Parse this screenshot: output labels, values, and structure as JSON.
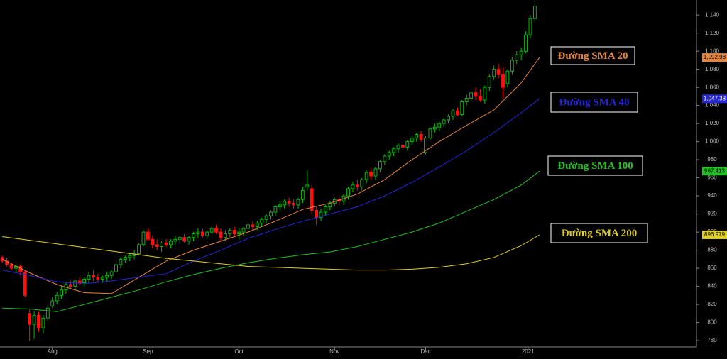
{
  "chart_data": {
    "type": "candlestick",
    "up_color": "#00c000",
    "down_color": "#ff1010",
    "open": [
      872,
      868,
      864,
      860,
      862,
      856,
      810,
      798,
      808,
      794,
      805,
      818,
      824,
      830,
      836,
      842,
      840,
      846,
      844,
      848,
      852,
      850,
      848,
      850,
      852,
      856,
      864,
      870,
      872,
      874,
      876,
      886,
      900,
      892,
      886,
      884,
      888,
      886,
      890,
      892,
      894,
      890,
      894,
      898,
      900,
      896,
      900,
      904,
      900,
      894,
      898,
      902,
      898,
      900,
      904,
      908,
      906,
      910,
      914,
      918,
      922,
      928,
      930,
      934,
      932,
      930,
      936,
      950,
      948,
      924,
      916,
      922,
      928,
      932,
      936,
      934,
      940,
      948,
      952,
      950,
      958,
      966,
      962,
      970,
      978,
      984,
      988,
      992,
      996,
      994,
      1000,
      1004,
      1008,
      988,
      1004,
      1014,
      1016,
      1020,
      1024,
      1028,
      1034,
      1030,
      1044,
      1048,
      1054,
      1050,
      1046,
      1060,
      1072,
      1080,
      1074,
      1064,
      1078,
      1090,
      1096,
      1100,
      1118,
      1136
    ],
    "high": [
      874,
      872,
      866,
      864,
      864,
      858,
      815,
      812,
      812,
      808,
      820,
      828,
      834,
      840,
      844,
      846,
      848,
      850,
      850,
      856,
      858,
      854,
      852,
      856,
      858,
      866,
      872,
      874,
      876,
      880,
      888,
      902,
      904,
      896,
      892,
      890,
      892,
      892,
      896,
      896,
      898,
      896,
      900,
      904,
      904,
      902,
      906,
      908,
      904,
      902,
      904,
      906,
      904,
      906,
      910,
      912,
      912,
      916,
      920,
      924,
      930,
      934,
      936,
      938,
      936,
      938,
      950,
      968,
      952,
      928,
      926,
      930,
      934,
      938,
      940,
      942,
      950,
      956,
      958,
      960,
      968,
      970,
      972,
      980,
      986,
      990,
      994,
      998,
      1000,
      1002,
      1006,
      1010,
      1012,
      1006,
      1016,
      1020,
      1022,
      1026,
      1030,
      1036,
      1038,
      1046,
      1052,
      1056,
      1060,
      1058,
      1062,
      1074,
      1084,
      1086,
      1082,
      1080,
      1094,
      1100,
      1104,
      1122,
      1140,
      1156
    ],
    "low": [
      866,
      862,
      858,
      856,
      852,
      828,
      780,
      782,
      790,
      788,
      802,
      816,
      820,
      826,
      832,
      838,
      836,
      842,
      840,
      844,
      846,
      844,
      844,
      846,
      848,
      854,
      860,
      866,
      868,
      870,
      874,
      884,
      890,
      882,
      880,
      878,
      884,
      882,
      886,
      888,
      888,
      886,
      890,
      894,
      894,
      892,
      898,
      898,
      890,
      890,
      894,
      896,
      892,
      896,
      900,
      902,
      902,
      906,
      910,
      914,
      918,
      924,
      926,
      928,
      926,
      926,
      932,
      946,
      920,
      908,
      912,
      918,
      924,
      928,
      930,
      930,
      936,
      944,
      946,
      946,
      954,
      958,
      958,
      966,
      974,
      980,
      984,
      988,
      990,
      990,
      996,
      1000,
      1000,
      986,
      1002,
      1010,
      1012,
      1016,
      1020,
      1024,
      1028,
      1028,
      1040,
      1044,
      1046,
      1044,
      1042,
      1056,
      1068,
      1070,
      1048,
      1060,
      1074,
      1086,
      1090,
      1098,
      1114,
      1132
    ],
    "close": [
      868,
      864,
      860,
      862,
      856,
      830,
      798,
      808,
      794,
      805,
      816,
      824,
      830,
      836,
      842,
      840,
      846,
      844,
      848,
      852,
      850,
      848,
      850,
      852,
      856,
      864,
      870,
      872,
      874,
      876,
      886,
      900,
      892,
      886,
      884,
      888,
      886,
      890,
      892,
      894,
      890,
      894,
      898,
      900,
      896,
      900,
      904,
      900,
      894,
      898,
      902,
      898,
      900,
      904,
      908,
      906,
      910,
      914,
      918,
      922,
      928,
      930,
      934,
      932,
      930,
      936,
      946,
      952,
      924,
      916,
      922,
      928,
      932,
      936,
      934,
      940,
      948,
      952,
      950,
      958,
      966,
      962,
      970,
      978,
      984,
      988,
      992,
      996,
      994,
      1000,
      1004,
      1008,
      1002,
      1004,
      1014,
      1016,
      1020,
      1024,
      1028,
      1034,
      1030,
      1044,
      1048,
      1054,
      1050,
      1046,
      1060,
      1072,
      1080,
      1074,
      1060,
      1078,
      1090,
      1096,
      1100,
      1118,
      1136,
      1150
    ],
    "series": [
      {
        "name": "Đường SMA 20",
        "color": "#e8853a",
        "x": [
          0,
          6,
          12,
          18,
          24,
          30,
          36,
          42,
          48,
          54,
          60,
          66,
          72,
          78,
          84,
          90,
          96,
          102,
          108,
          114,
          118
        ],
        "values": [
          870,
          855,
          842,
          833,
          832,
          850,
          868,
          880,
          890,
          900,
          912,
          925,
          932,
          942,
          958,
          980,
          1000,
          1018,
          1035,
          1065,
          1092.98
        ],
        "value_labels": [
          null,
          null,
          null,
          null,
          null,
          null,
          null,
          null,
          null,
          null,
          null,
          null,
          null,
          null,
          null,
          null,
          null,
          null,
          null,
          null,
          "1,092.98"
        ]
      },
      {
        "name": "Đường SMA 40",
        "color": "#2424d8",
        "x": [
          0,
          6,
          12,
          18,
          24,
          30,
          36,
          42,
          48,
          54,
          60,
          66,
          72,
          78,
          84,
          90,
          96,
          102,
          108,
          114,
          118
        ],
        "values": [
          858,
          852,
          845,
          843,
          846,
          850,
          854,
          868,
          880,
          893,
          903,
          912,
          920,
          928,
          940,
          955,
          972,
          990,
          1010,
          1032,
          1047.38
        ],
        "value_labels": [
          null,
          null,
          null,
          null,
          null,
          null,
          null,
          null,
          null,
          null,
          null,
          null,
          null,
          null,
          null,
          null,
          null,
          null,
          null,
          null,
          "1,047.38"
        ]
      },
      {
        "name": "Đường SMA 100",
        "color": "#22c022",
        "x": [
          0,
          6,
          12,
          18,
          24,
          30,
          36,
          42,
          48,
          54,
          60,
          66,
          72,
          78,
          84,
          90,
          96,
          102,
          108,
          114,
          118
        ],
        "values": [
          816,
          815,
          812,
          820,
          828,
          836,
          845,
          853,
          860,
          866,
          871,
          875,
          878,
          884,
          892,
          900,
          910,
          923,
          936,
          952,
          967.413
        ]
      },
      {
        "name": "Đường SMA 200",
        "color": "#e0d020",
        "x": [
          0,
          6,
          12,
          18,
          24,
          30,
          36,
          42,
          48,
          54,
          60,
          66,
          72,
          78,
          84,
          90,
          96,
          102,
          108,
          114,
          118
        ],
        "values": [
          895,
          891,
          887,
          883,
          879,
          875,
          871,
          868,
          865,
          862,
          861,
          860,
          859,
          858,
          858,
          859,
          861,
          865,
          872,
          885,
          896.979
        ]
      }
    ],
    "xlim": [
      -0.5,
      152.5
    ],
    "ylim": [
      773,
      1156.6
    ],
    "xticks": [
      {
        "value": 11,
        "label": "Aug"
      },
      {
        "value": 32,
        "label": "Sep"
      },
      {
        "value": 52,
        "label": "Oct"
      },
      {
        "value": 73,
        "label": "Nov"
      },
      {
        "value": 93,
        "label": "Dec"
      },
      {
        "value": 115.5,
        "label": "2021"
      }
    ],
    "yticks": [
      780,
      800,
      820,
      840,
      860,
      880,
      900,
      920,
      940,
      960,
      980,
      {
        "value": 1000,
        "label": "1,000"
      },
      {
        "value": 1020,
        "label": "1,020"
      },
      {
        "value": 1040,
        "label": "1,040"
      },
      {
        "value": 1060,
        "label": "1,060"
      },
      {
        "value": 1080,
        "label": "1,080"
      },
      {
        "value": 1100,
        "label": "1,100"
      },
      {
        "value": 1120,
        "label": "1,120"
      },
      {
        "value": 1140,
        "label": "1,140"
      }
    ]
  }
}
